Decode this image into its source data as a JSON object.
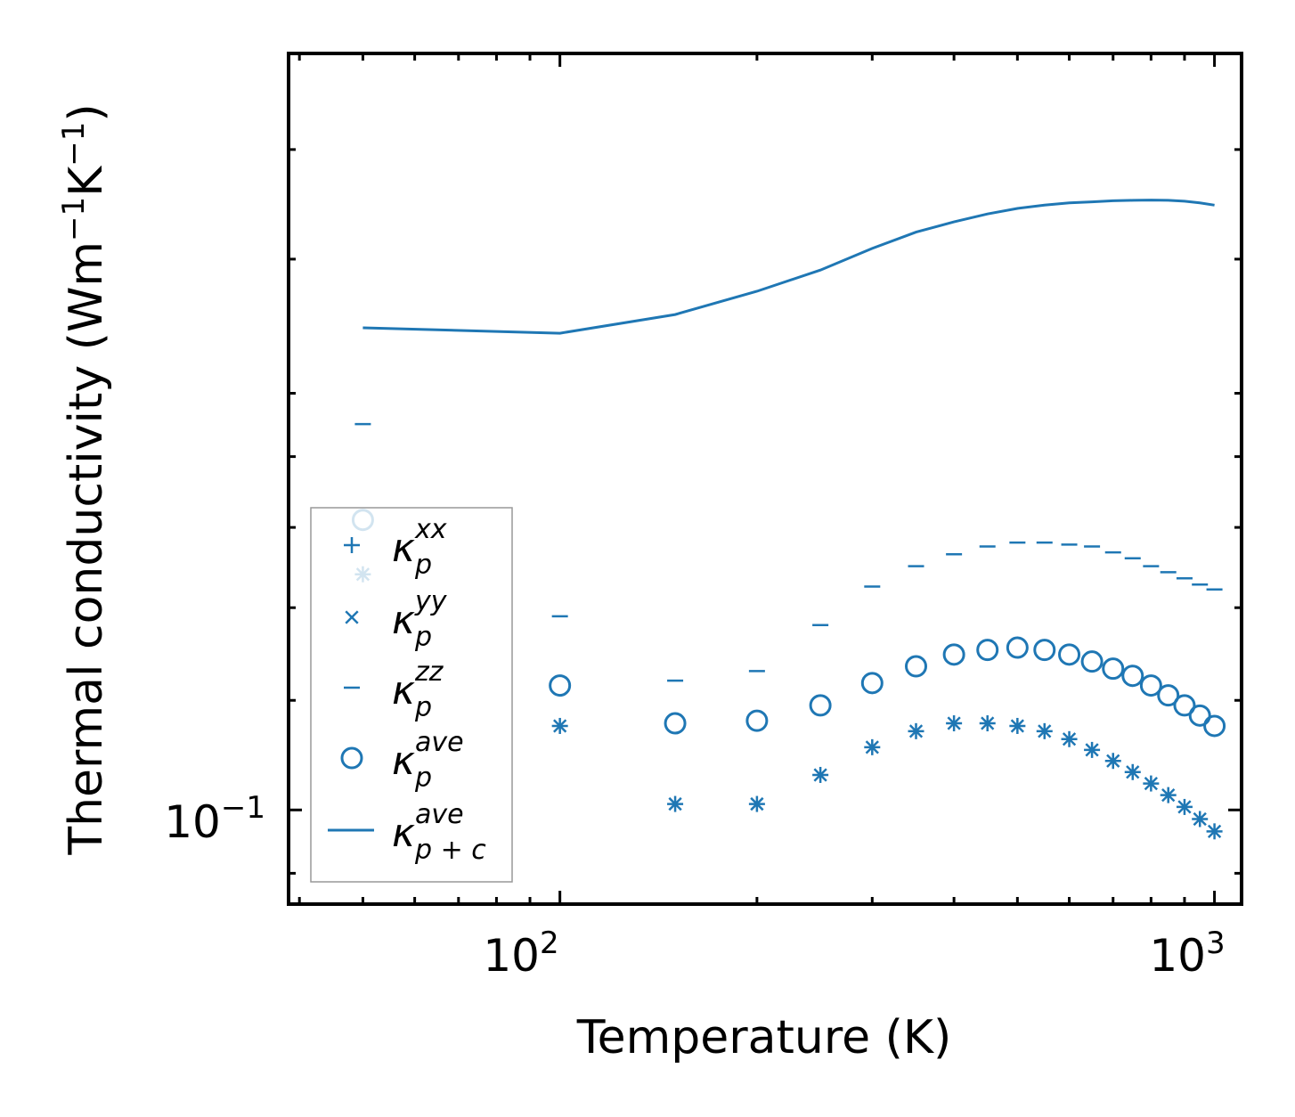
{
  "chart_data": {
    "type": "scatter",
    "title": "",
    "xlabel": "Temperature (K)",
    "ylabel": "Thermal conductivity (Wm",
    "ylabel_unit_exp1": "−1",
    "ylabel_unit_mid": "K",
    "ylabel_unit_exp2": "−1",
    "ylabel_close": ")",
    "xscale": "log",
    "yscale": "log",
    "xlim": [
      38.5,
      1100
    ],
    "ylim": [
      0.0855,
      0.352
    ],
    "x_ticks": [
      {
        "base": "10",
        "exp": "2",
        "value": 100
      },
      {
        "base": "10",
        "exp": "3",
        "value": 1000
      }
    ],
    "y_ticks": [
      {
        "base": "10",
        "exp": "−1",
        "value": 0.1
      }
    ],
    "grid": false,
    "legend_position": "lower-left",
    "color": "#1f77b4",
    "x": [
      50,
      100,
      150,
      200,
      250,
      300,
      350,
      400,
      450,
      500,
      550,
      600,
      650,
      700,
      750,
      800,
      850,
      900,
      950,
      1000
    ],
    "series": [
      {
        "name": "κ",
        "sub": "p",
        "sup": "xx",
        "marker": "plus",
        "values": [
          0.148,
          0.115,
          0.101,
          0.101,
          0.106,
          0.111,
          0.114,
          0.1155,
          0.1155,
          0.115,
          0.114,
          0.1125,
          0.1105,
          0.1085,
          0.1065,
          0.1045,
          0.1025,
          0.1005,
          0.0985,
          0.0965
        ]
      },
      {
        "name": "κ",
        "sub": "p",
        "sup": "yy",
        "marker": "x",
        "values": [
          0.148,
          0.115,
          0.101,
          0.101,
          0.106,
          0.111,
          0.114,
          0.1155,
          0.1155,
          0.115,
          0.114,
          0.1125,
          0.1105,
          0.1085,
          0.1065,
          0.1045,
          0.1025,
          0.1005,
          0.0985,
          0.0965
        ]
      },
      {
        "name": "κ",
        "sub": "p",
        "sup": "zz",
        "marker": "hline",
        "values": [
          0.19,
          0.138,
          0.124,
          0.126,
          0.136,
          0.145,
          0.15,
          0.153,
          0.155,
          0.156,
          0.156,
          0.1555,
          0.155,
          0.1535,
          0.152,
          0.15,
          0.1485,
          0.147,
          0.1455,
          0.1443
        ]
      },
      {
        "name": "κ",
        "sub": "p",
        "sup": "ave",
        "marker": "circle",
        "values": [
          0.162,
          0.123,
          0.1155,
          0.116,
          0.119,
          0.1235,
          0.127,
          0.1295,
          0.1305,
          0.131,
          0.1305,
          0.1295,
          0.128,
          0.1265,
          0.125,
          0.123,
          0.121,
          0.119,
          0.117,
          0.115
        ]
      },
      {
        "name": "κ",
        "sub": "p + c",
        "sup": "ave",
        "marker": "line",
        "values": [
          0.223,
          0.221,
          0.228,
          0.237,
          0.2455,
          0.2545,
          0.2615,
          0.266,
          0.2695,
          0.272,
          0.2735,
          0.2745,
          0.275,
          0.2755,
          0.2757,
          0.2758,
          0.2757,
          0.2753,
          0.2745,
          0.2735
        ]
      }
    ]
  }
}
